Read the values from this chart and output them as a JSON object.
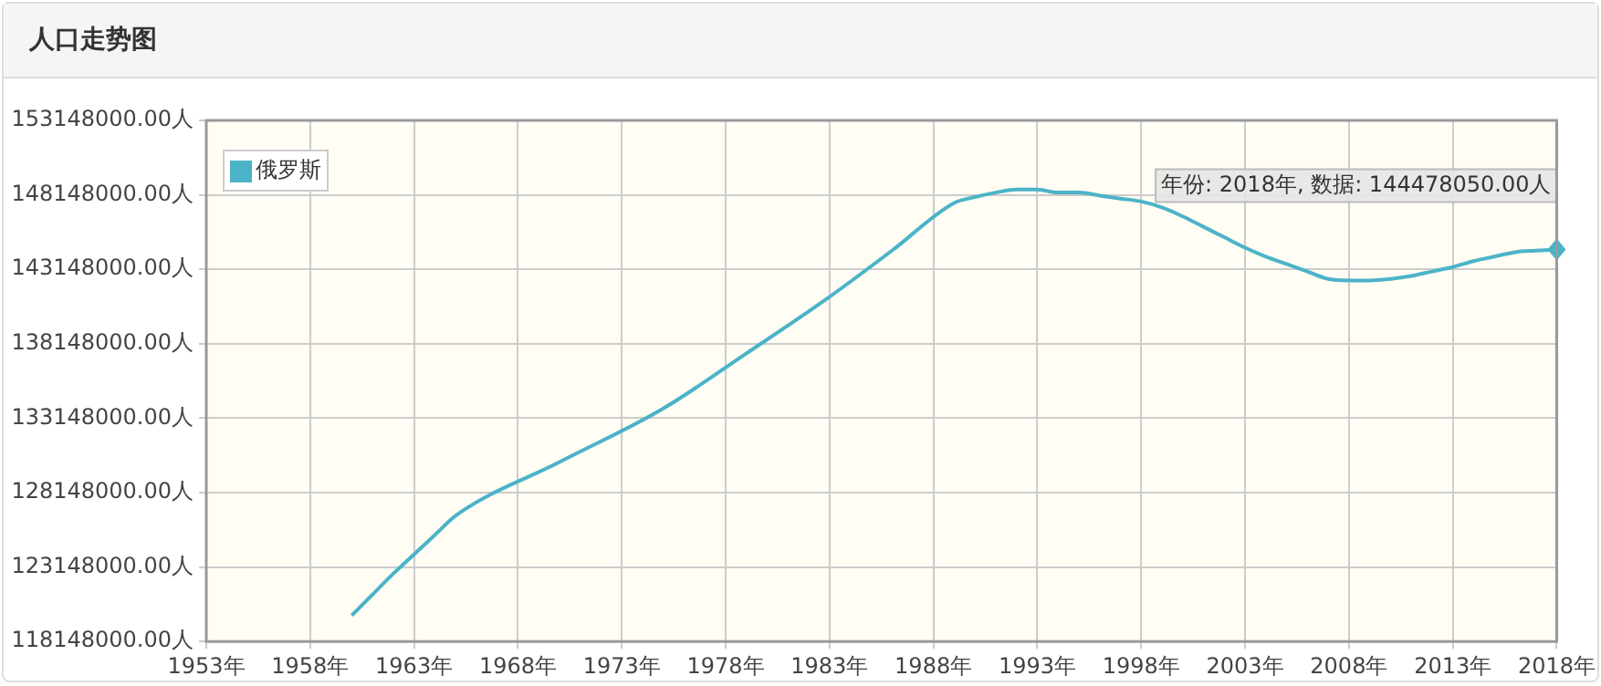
{
  "chart_data": {
    "type": "line",
    "title": "人口走势图",
    "x": [
      1960,
      1961,
      1962,
      1963,
      1964,
      1965,
      1970,
      1975,
      1979,
      1983,
      1986,
      1989,
      1990,
      1991,
      1992,
      1993,
      1994,
      1995,
      1996,
      1997,
      1998,
      1999,
      2000,
      2001,
      2002,
      2003,
      2004,
      2005,
      2006,
      2007,
      2008,
      2009,
      2010,
      2011,
      2012,
      2013,
      2014,
      2015,
      2016,
      2017,
      2018
    ],
    "series": [
      {
        "name": "俄罗斯",
        "color": "#4bb3c8",
        "values": [
          119900000,
          121300000,
          122700000,
          124000000,
          125300000,
          126600000,
          130200000,
          133800000,
          137500000,
          141300000,
          144400000,
          147600000,
          148000000,
          148300000,
          148500000,
          148500000,
          148300000,
          148300000,
          148100000,
          147900000,
          147700000,
          147300000,
          146700000,
          146000000,
          145300000,
          144600000,
          144000000,
          143500000,
          143000000,
          142500000,
          142400000,
          142400000,
          142500000,
          142700000,
          143000000,
          143300000,
          143700000,
          144000000,
          144300000,
          144400000,
          144478050
        ]
      }
    ],
    "xlim": [
      1953,
      2018
    ],
    "xticks": [
      {
        "value": 1953,
        "label": "1953年"
      },
      {
        "value": 1958,
        "label": "1958年"
      },
      {
        "value": 1963,
        "label": "1963年"
      },
      {
        "value": 1968,
        "label": "1968年"
      },
      {
        "value": 1973,
        "label": "1973年"
      },
      {
        "value": 1978,
        "label": "1978年"
      },
      {
        "value": 1983,
        "label": "1983年"
      },
      {
        "value": 1988,
        "label": "1988年"
      },
      {
        "value": 1993,
        "label": "1993年"
      },
      {
        "value": 1998,
        "label": "1998年"
      },
      {
        "value": 2003,
        "label": "2003年"
      },
      {
        "value": 2008,
        "label": "2008年"
      },
      {
        "value": 2013,
        "label": "2013年"
      },
      {
        "value": 2018,
        "label": "2018年"
      }
    ],
    "ylim": [
      118148000,
      153148000
    ],
    "yticks": [
      {
        "value": 118148000,
        "label": "118148000.00人"
      },
      {
        "value": 123148000,
        "label": "123148000.00人"
      },
      {
        "value": 128148000,
        "label": "128148000.00人"
      },
      {
        "value": 133148000,
        "label": "133148000.00人"
      },
      {
        "value": 138148000,
        "label": "138148000.00人"
      },
      {
        "value": 143148000,
        "label": "143148000.00人"
      },
      {
        "value": 148148000,
        "label": "148148000.00人"
      },
      {
        "value": 153148000,
        "label": "153148000.00人"
      }
    ],
    "annotations": [
      {
        "text": "年份: 2018年, 数据: 144478050.00人",
        "x": 2018,
        "y": 144478050
      }
    ],
    "grid": true,
    "legend": "top left",
    "marker": "none",
    "line_style": "solid"
  }
}
